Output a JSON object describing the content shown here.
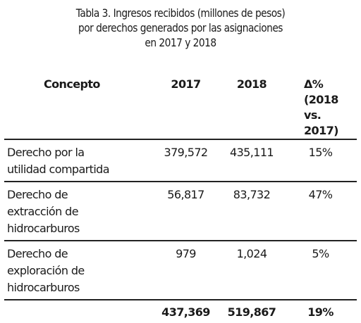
{
  "caption": {
    "line1": "Tabla 3. Ingresos recibidos (millones de pesos)",
    "line2": "por derechos generados por las asignaciones",
    "line3": "en 2017 y 2018"
  },
  "table": {
    "headers": {
      "concept": "Concepto",
      "y2017": "2017",
      "y2018": "2018",
      "delta_line1": "Δ% (2018",
      "delta_line2": "vs. 2017)"
    },
    "rows": [
      {
        "label_lines": [
          "Derecho por la",
          "utilidad compartida"
        ],
        "v2017": "379,572",
        "v2018": "435,111",
        "delta": "15%"
      },
      {
        "label_lines": [
          "Derecho de",
          "extracción de",
          "hidrocarburos"
        ],
        "v2017": "56,817",
        "v2018": "83,732",
        "delta": "47%"
      },
      {
        "label_lines": [
          "Derecho de",
          "exploración de",
          "hidrocarburos"
        ],
        "v2017": "979",
        "v2018": "1,024",
        "delta": "5%"
      }
    ],
    "total": {
      "label": "",
      "v2017": "437,369",
      "v2018": "519,867",
      "delta": "19%"
    }
  }
}
